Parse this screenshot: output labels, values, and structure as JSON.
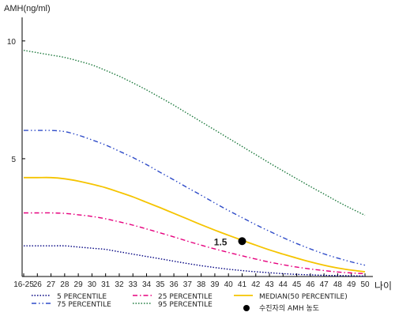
{
  "chart_data": {
    "type": "line",
    "ylabel": "AMH(ng/ml)",
    "xlabel": "나이",
    "ylim": [
      0,
      11
    ],
    "yticks": [
      5,
      10
    ],
    "categories": [
      "16-25",
      "26",
      "27",
      "28",
      "29",
      "30",
      "31",
      "32",
      "33",
      "34",
      "35",
      "36",
      "37",
      "38",
      "39",
      "40",
      "41",
      "42",
      "43",
      "44",
      "45",
      "46",
      "47",
      "48",
      "49",
      "50"
    ],
    "grid": false,
    "legend_position": "bottom",
    "series": [
      {
        "name": "5 PERCENTILE",
        "color": "#000080",
        "dash": "dotted",
        "values": [
          1.3,
          1.3,
          1.3,
          1.3,
          1.25,
          1.2,
          1.15,
          1.05,
          0.95,
          0.85,
          0.75,
          0.65,
          0.55,
          0.46,
          0.38,
          0.31,
          0.25,
          0.2,
          0.16,
          0.12,
          0.09,
          0.07,
          0.05,
          0.04,
          0.03,
          0.02
        ]
      },
      {
        "name": "25 PERCENTILE",
        "color": "#E6007E",
        "dash": "dashdot",
        "values": [
          2.7,
          2.7,
          2.7,
          2.68,
          2.62,
          2.55,
          2.45,
          2.32,
          2.18,
          2.02,
          1.85,
          1.68,
          1.5,
          1.33,
          1.17,
          1.02,
          0.88,
          0.74,
          0.61,
          0.5,
          0.4,
          0.32,
          0.25,
          0.19,
          0.15,
          0.12
        ]
      },
      {
        "name": "MEDIAN(50 PERCENTILE)",
        "color": "#F5C400",
        "dash": "solid",
        "values": [
          4.2,
          4.2,
          4.2,
          4.15,
          4.05,
          3.92,
          3.77,
          3.58,
          3.38,
          3.15,
          2.92,
          2.68,
          2.44,
          2.2,
          1.97,
          1.75,
          1.54,
          1.33,
          1.13,
          0.95,
          0.78,
          0.62,
          0.48,
          0.36,
          0.27,
          0.2
        ]
      },
      {
        "name": "75 PERCENTILE",
        "color": "#2E4BC8",
        "dash": "dashdotdot",
        "values": [
          6.2,
          6.2,
          6.2,
          6.15,
          6.0,
          5.8,
          5.58,
          5.32,
          5.05,
          4.75,
          4.42,
          4.1,
          3.77,
          3.45,
          3.12,
          2.8,
          2.5,
          2.2,
          1.92,
          1.65,
          1.4,
          1.17,
          0.96,
          0.78,
          0.62,
          0.48
        ]
      },
      {
        "name": "95 PERCENTILE",
        "color": "#1E7A3E",
        "dash": "dotted",
        "values": [
          9.6,
          9.5,
          9.4,
          9.3,
          9.15,
          8.98,
          8.75,
          8.5,
          8.22,
          7.92,
          7.6,
          7.27,
          6.92,
          6.57,
          6.22,
          5.87,
          5.52,
          5.17,
          4.82,
          4.48,
          4.15,
          3.82,
          3.5,
          3.18,
          2.88,
          2.6
        ]
      }
    ],
    "marker": {
      "name": "수진자의 AMH 농도",
      "x": "41",
      "y": 1.5,
      "label": "1.5",
      "color": "#000000"
    }
  }
}
